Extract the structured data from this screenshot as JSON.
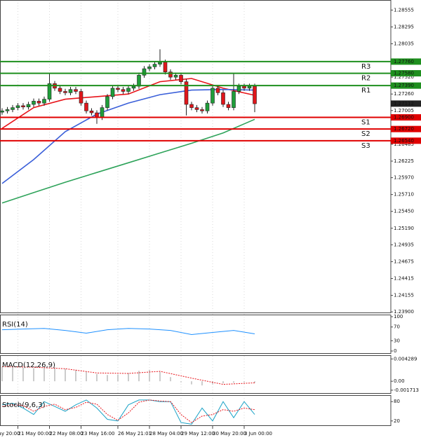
{
  "chart_data": [
    {
      "type": "candlestick",
      "ylim": [
        1.2388,
        1.2871
      ],
      "yticks": [
        1.28555,
        1.28295,
        1.28035,
        {
          "value": 1.2752,
          "label": "1.27520"
        },
        {
          "value": 1.2726,
          "label": "1.27260"
        },
        1.27005,
        1.26485,
        1.26225,
        {
          "value": 1.2597,
          "label": "1.25970"
        },
        {
          "value": 1.2571,
          "label": "1.25710"
        },
        {
          "value": 1.2545,
          "label": "1.25450"
        },
        {
          "value": 1.2519,
          "label": "1.25190"
        },
        1.24935,
        1.24675,
        1.24415,
        1.24155,
        {
          "value": 1.239,
          "label": "1.23900"
        }
      ],
      "xticks": [
        {
          "value": -3,
          "label": "20 May 20:00"
        },
        {
          "value": 3,
          "label": "21 May 00:00"
        },
        {
          "value": 9,
          "label": "22 May 08:00"
        },
        {
          "value": 15,
          "label": "23 May 16:00"
        },
        {
          "value": 22,
          "label": "26 May 21:01"
        },
        {
          "value": 28,
          "label": "28 May 04:00"
        },
        {
          "value": 34,
          "label": "29 May 12:00"
        },
        {
          "value": 40,
          "label": "30 May 20:00"
        },
        {
          "value": 46,
          "label": "3 Jun 00:00"
        }
      ],
      "up_color": "#1f9e3a",
      "down_color": "#e0161b",
      "open": [
        1.2698,
        1.27,
        1.2702,
        1.2705,
        1.2708,
        1.2706,
        1.271,
        1.2715,
        1.2712,
        1.2718,
        1.2742,
        1.2735,
        1.273,
        1.2728,
        1.2733,
        1.273,
        1.2712,
        1.27,
        1.2697,
        1.269,
        1.2705,
        1.2722,
        1.2735,
        1.2733,
        1.273,
        1.2735,
        1.2738,
        1.2755,
        1.2765,
        1.2768,
        1.2772,
        1.2775,
        1.276,
        1.2752,
        1.2755,
        1.2745,
        1.271,
        1.2705,
        1.2702,
        1.27,
        1.2712,
        1.2735,
        1.2728,
        1.271,
        1.2705,
        1.273,
        1.2738,
        1.2735,
        1.2738
      ],
      "high": [
        1.2704,
        1.2706,
        1.2709,
        1.2712,
        1.2712,
        1.2714,
        1.2719,
        1.2719,
        1.2722,
        1.2757,
        1.2746,
        1.2739,
        1.2734,
        1.2737,
        1.2737,
        1.2734,
        1.2716,
        1.2704,
        1.2701,
        1.2709,
        1.2726,
        1.2739,
        1.2739,
        1.2737,
        1.2739,
        1.2742,
        1.2759,
        1.2769,
        1.2772,
        1.2776,
        1.2795,
        1.2779,
        1.2764,
        1.2759,
        1.2759,
        1.2749,
        1.2714,
        1.2709,
        1.2706,
        1.2716,
        1.2739,
        1.2739,
        1.2732,
        1.2714,
        1.2757,
        1.2742,
        1.2742,
        1.2742,
        1.2742
      ],
      "low": [
        1.2694,
        1.2696,
        1.2698,
        1.2701,
        1.2702,
        1.2702,
        1.2706,
        1.2708,
        1.2708,
        1.2714,
        1.2731,
        1.2726,
        1.2724,
        1.2724,
        1.2726,
        1.2708,
        1.2696,
        1.2693,
        1.268,
        1.2686,
        1.2701,
        1.2718,
        1.2729,
        1.2726,
        1.2726,
        1.2731,
        1.2734,
        1.2751,
        1.2761,
        1.2764,
        1.2768,
        1.2756,
        1.2748,
        1.2748,
        1.2741,
        1.2693,
        1.2701,
        1.2698,
        1.2696,
        1.2696,
        1.2708,
        1.2724,
        1.2706,
        1.2701,
        1.2701,
        1.2726,
        1.2731,
        1.2731,
        1.2698
      ],
      "close": [
        1.27,
        1.2702,
        1.2705,
        1.2708,
        1.2706,
        1.271,
        1.2715,
        1.2712,
        1.2718,
        1.2742,
        1.2735,
        1.273,
        1.2728,
        1.2733,
        1.273,
        1.2712,
        1.27,
        1.2697,
        1.269,
        1.2705,
        1.2722,
        1.2735,
        1.2733,
        1.273,
        1.2735,
        1.2738,
        1.2755,
        1.2765,
        1.2768,
        1.2772,
        1.2775,
        1.276,
        1.2752,
        1.2755,
        1.2745,
        1.271,
        1.2705,
        1.2702,
        1.27,
        1.2712,
        1.2735,
        1.2728,
        1.271,
        1.2705,
        1.273,
        1.2738,
        1.2735,
        1.2738,
        1.2711
      ],
      "series": [
        {
          "color": "#e8141a",
          "x": [
            0,
            6,
            12,
            18,
            24,
            30,
            36,
            42,
            48
          ],
          "values": [
            1.2673,
            1.2705,
            1.2718,
            1.2722,
            1.2726,
            1.2745,
            1.275,
            1.2735,
            1.2724
          ]
        },
        {
          "color": "#3a5fd9",
          "x": [
            0,
            6,
            12,
            18,
            24,
            30,
            36,
            42,
            48
          ],
          "values": [
            1.2588,
            1.2625,
            1.2668,
            1.2695,
            1.2712,
            1.2725,
            1.2732,
            1.2733,
            1.2732
          ]
        },
        {
          "color": "#2ea35a",
          "x": [
            0,
            6,
            12,
            18,
            24,
            30,
            36,
            42,
            48
          ],
          "values": [
            1.2558,
            1.2574,
            1.259,
            1.2605,
            1.262,
            1.2635,
            1.265,
            1.2666,
            1.2687
          ]
        }
      ],
      "levels": [
        {
          "name": "R3",
          "value": 1.2776,
          "value_label": "1.27760",
          "color": "#1e8f1e"
        },
        {
          "name": "R2",
          "value": 1.2758,
          "value_label": "1.27580",
          "color": "#1e8f1e"
        },
        {
          "name": "R1",
          "value": 1.2739,
          "value_label": "1.27390",
          "color": "#1e8f1e"
        },
        {
          "name": "S1",
          "value": 1.269,
          "value_label": "1.26900",
          "color": "#e00000"
        },
        {
          "name": "S2",
          "value": 1.2672,
          "value_label": "1.26720",
          "color": "#e00000"
        },
        {
          "name": "S3",
          "value": 1.2654,
          "value_label": "1.26540",
          "color": "#e00000"
        }
      ],
      "last_price": 1.27112
    },
    {
      "type": "line",
      "title": "RSI(14)",
      "ylim": [
        0,
        100
      ],
      "yticks": [
        100,
        70,
        30,
        0
      ],
      "series": [
        {
          "color": "#1e90ff",
          "x": [
            0,
            4,
            8,
            12,
            16,
            20,
            24,
            28,
            32,
            36,
            40,
            44,
            48
          ],
          "values": [
            62,
            64,
            66,
            60,
            52,
            62,
            66,
            64,
            60,
            48,
            54,
            60,
            50
          ]
        }
      ]
    },
    {
      "type": "macd",
      "title": "MACD(12,26,9)",
      "ylim": [
        -0.0024,
        0.005
      ],
      "yticks": [
        0.004289,
        {
          "value": 0,
          "label": "0.00"
        },
        -0.001713
      ],
      "histogram": {
        "color": "#9a9a9a",
        "x": [
          0,
          2,
          4,
          6,
          8,
          10,
          12,
          14,
          16,
          18,
          20,
          22,
          24,
          26,
          28,
          30,
          32,
          34,
          36,
          38,
          40,
          42,
          44,
          46,
          48
        ],
        "values": [
          0.0028,
          0.0027,
          0.0026,
          0.0025,
          0.0026,
          0.0027,
          0.0024,
          0.0022,
          0.0018,
          0.0014,
          0.0012,
          0.0013,
          0.0016,
          0.002,
          0.0022,
          0.0018,
          0.0008,
          -0.0002,
          -0.0006,
          -0.0008,
          -0.0006,
          -0.0004,
          -0.0003,
          -0.0002,
          -0.0003
        ]
      },
      "series": [
        {
          "color": "#e8141a",
          "dashed": true,
          "x": [
            0,
            6,
            12,
            18,
            24,
            30,
            36,
            42,
            48
          ],
          "values": [
            0.0028,
            0.0027,
            0.0024,
            0.0016,
            0.0015,
            0.0019,
            0.0006,
            -0.0006,
            -0.0003
          ]
        }
      ]
    },
    {
      "type": "line",
      "title": "Stoch(9,6,3)",
      "ylim": [
        0,
        100
      ],
      "yticks": [
        80,
        20
      ],
      "series": [
        {
          "color": "#1ca3c7",
          "x": [
            0,
            2,
            4,
            6,
            8,
            10,
            12,
            14,
            16,
            18,
            20,
            22,
            24,
            26,
            28,
            30,
            32,
            34,
            36,
            38,
            40,
            42,
            44,
            46,
            48
          ],
          "values": [
            70,
            75,
            60,
            40,
            80,
            65,
            50,
            70,
            85,
            60,
            25,
            20,
            70,
            85,
            85,
            80,
            80,
            15,
            10,
            60,
            20,
            80,
            30,
            80,
            40
          ]
        },
        {
          "color": "#e8141a",
          "dashed": true,
          "x": [
            0,
            2,
            4,
            6,
            8,
            10,
            12,
            14,
            16,
            18,
            20,
            22,
            24,
            26,
            28,
            30,
            32,
            34,
            36,
            38,
            40,
            42,
            44,
            46,
            48
          ],
          "values": [
            65,
            70,
            68,
            50,
            65,
            72,
            55,
            62,
            78,
            72,
            40,
            22,
            45,
            78,
            85,
            82,
            80,
            40,
            15,
            35,
            40,
            55,
            50,
            60,
            55
          ]
        }
      ]
    }
  ]
}
